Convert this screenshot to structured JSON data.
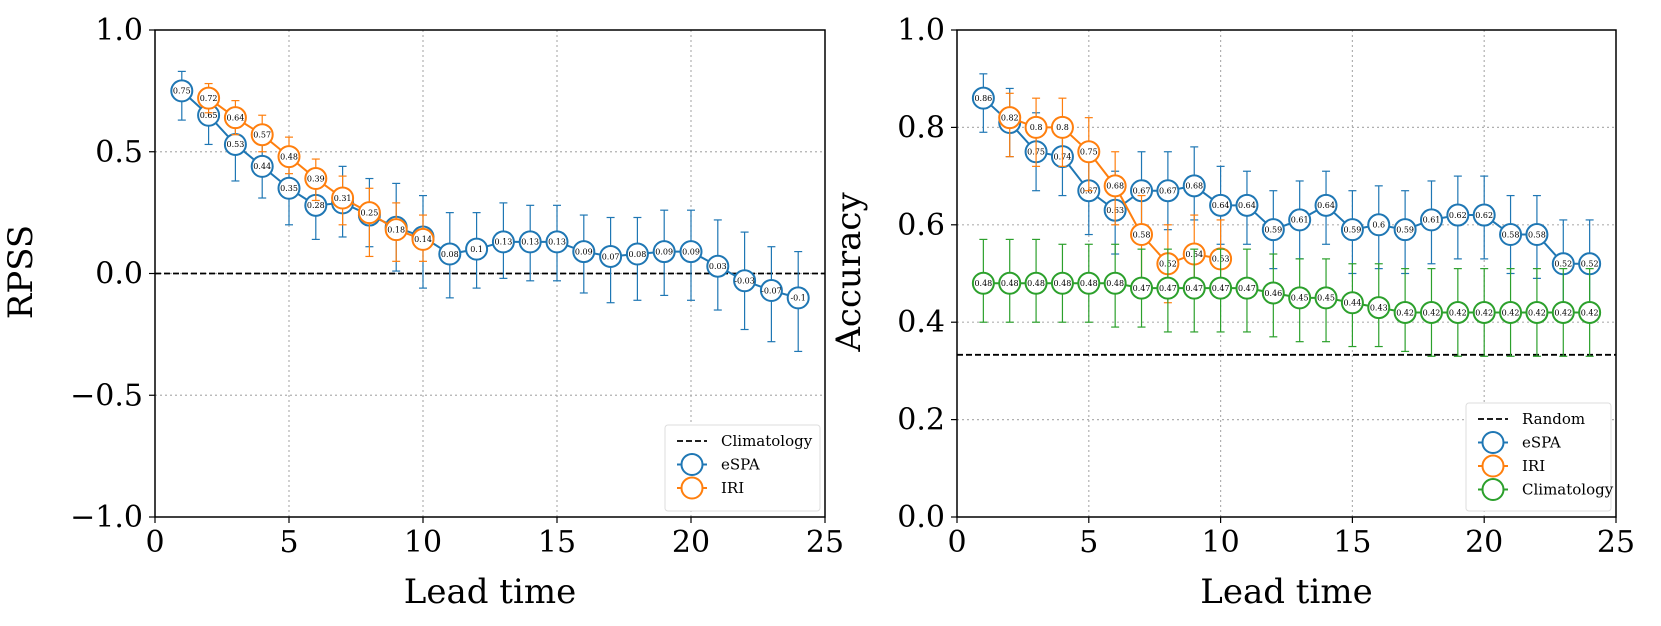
{
  "chart_data": [
    {
      "type": "line",
      "title": "",
      "xlabel": "Lead time",
      "ylabel": "RPSS",
      "xlim": [
        0,
        25
      ],
      "ylim": [
        -1.0,
        1.0
      ],
      "xticks": [
        0,
        5,
        10,
        15,
        20,
        25
      ],
      "xtick_labels": [
        "0",
        "5",
        "10",
        "15",
        "20",
        "25"
      ],
      "yticks": [
        -1.0,
        -0.5,
        0.0,
        0.5,
        1.0
      ],
      "ytick_labels": [
        "−1.0",
        "−0.5",
        "0.0",
        "0.5",
        "1.0"
      ],
      "grid": true,
      "legend_position": "bottom-right",
      "reference_line": {
        "name": "Climatology",
        "y": 0.0,
        "color": "#000000"
      },
      "series": [
        {
          "name": "eSPA",
          "color": "#1f77b4",
          "x": [
            1,
            2,
            3,
            4,
            5,
            6,
            7,
            8,
            9,
            10,
            11,
            12,
            13,
            14,
            15,
            16,
            17,
            18,
            19,
            20,
            21,
            22,
            23,
            24
          ],
          "values": [
            0.75,
            0.65,
            0.53,
            0.44,
            0.35,
            0.28,
            0.29,
            0.24,
            0.19,
            0.15,
            0.08,
            0.1,
            0.13,
            0.13,
            0.13,
            0.09,
            0.07,
            0.08,
            0.09,
            0.09,
            0.03,
            -0.03,
            -0.07,
            -0.1
          ],
          "labels": [
            "0.75",
            "0.65",
            "0.53",
            "0.44",
            "0.35",
            "0.28",
            "0.29",
            "0.24",
            "0.19",
            "0.15",
            "0.08",
            "0.1",
            "0.13",
            "0.13",
            "0.13",
            "0.09",
            "0.07",
            "0.08",
            "0.09",
            "0.09",
            "0.03",
            "-0.03",
            "-0.07",
            "-0.1"
          ],
          "err_low": [
            0.63,
            0.53,
            0.38,
            0.31,
            0.2,
            0.14,
            0.15,
            0.11,
            0.01,
            -0.06,
            -0.1,
            -0.06,
            -0.02,
            -0.03,
            -0.03,
            -0.08,
            -0.12,
            -0.11,
            -0.09,
            -0.11,
            -0.15,
            -0.23,
            -0.28,
            -0.32
          ],
          "err_high": [
            0.83,
            0.76,
            0.67,
            0.56,
            0.5,
            0.42,
            0.44,
            0.39,
            0.37,
            0.32,
            0.25,
            0.25,
            0.29,
            0.28,
            0.28,
            0.24,
            0.23,
            0.23,
            0.26,
            0.26,
            0.22,
            0.17,
            0.11,
            0.09
          ]
        },
        {
          "name": "IRI",
          "color": "#ff7f0e",
          "x": [
            2,
            3,
            4,
            5,
            6,
            7,
            8,
            9,
            10
          ],
          "values": [
            0.72,
            0.64,
            0.57,
            0.48,
            0.39,
            0.31,
            0.25,
            0.18,
            0.14
          ],
          "labels": [
            "0.72",
            "0.64",
            "0.57",
            "0.48",
            "0.39",
            "0.31",
            "0.25",
            "0.18",
            "0.14"
          ],
          "err_low": [
            0.66,
            0.57,
            0.5,
            0.41,
            0.3,
            0.2,
            0.07,
            0.05,
            0.05
          ],
          "err_high": [
            0.78,
            0.71,
            0.65,
            0.56,
            0.47,
            0.4,
            0.35,
            0.29,
            0.24
          ]
        }
      ]
    },
    {
      "type": "line",
      "title": "",
      "xlabel": "Lead time",
      "ylabel": "Accuracy",
      "xlim": [
        0,
        25
      ],
      "ylim": [
        0.0,
        1.0
      ],
      "xticks": [
        0,
        5,
        10,
        15,
        20,
        25
      ],
      "xtick_labels": [
        "0",
        "5",
        "10",
        "15",
        "20",
        "25"
      ],
      "yticks": [
        0.0,
        0.2,
        0.4,
        0.6,
        0.8,
        1.0
      ],
      "ytick_labels": [
        "0.0",
        "0.2",
        "0.4",
        "0.6",
        "0.8",
        "1.0"
      ],
      "grid": true,
      "legend_position": "bottom-right",
      "reference_line": {
        "name": "Random",
        "y": 0.333,
        "color": "#000000"
      },
      "series": [
        {
          "name": "eSPA",
          "color": "#1f77b4",
          "x": [
            1,
            2,
            3,
            4,
            5,
            6,
            7,
            8,
            9,
            10,
            11,
            12,
            13,
            14,
            15,
            16,
            17,
            18,
            19,
            20,
            21,
            22,
            23,
            24
          ],
          "values": [
            0.86,
            0.81,
            0.75,
            0.74,
            0.67,
            0.63,
            0.67,
            0.67,
            0.68,
            0.64,
            0.64,
            0.59,
            0.61,
            0.64,
            0.59,
            0.6,
            0.59,
            0.61,
            0.62,
            0.62,
            0.58,
            0.58,
            0.52,
            0.52
          ],
          "labels": [
            "0.86",
            "0.81",
            "0.75",
            "0.74",
            "0.67",
            "0.63",
            "0.67",
            "0.67",
            "0.68",
            "0.64",
            "0.64",
            "0.59",
            "0.61",
            "0.64",
            "0.59",
            "0.6",
            "0.59",
            "0.61",
            "0.62",
            "0.62",
            "0.58",
            "0.58",
            "0.52",
            "0.52"
          ],
          "err_low": [
            0.79,
            0.74,
            0.67,
            0.66,
            0.58,
            0.54,
            0.59,
            0.59,
            0.61,
            0.56,
            0.56,
            0.51,
            0.53,
            0.56,
            0.5,
            0.51,
            0.5,
            0.52,
            0.53,
            0.53,
            0.5,
            0.49,
            0.44,
            0.44
          ],
          "err_high": [
            0.91,
            0.88,
            0.83,
            0.81,
            0.75,
            0.71,
            0.75,
            0.75,
            0.76,
            0.72,
            0.71,
            0.67,
            0.69,
            0.71,
            0.67,
            0.68,
            0.67,
            0.69,
            0.7,
            0.7,
            0.66,
            0.66,
            0.61,
            0.61
          ]
        },
        {
          "name": "IRI",
          "color": "#ff7f0e",
          "x": [
            2,
            3,
            4,
            5,
            6,
            7,
            8,
            9,
            10
          ],
          "values": [
            0.82,
            0.8,
            0.8,
            0.75,
            0.68,
            0.58,
            0.52,
            0.54,
            0.53
          ],
          "labels": [
            "0.82",
            "0.8",
            "0.8",
            "0.75",
            "0.68",
            "0.58",
            "0.52",
            "0.54",
            "0.53"
          ],
          "err_low": [
            0.74,
            0.72,
            0.72,
            0.67,
            0.6,
            0.49,
            0.44,
            0.46,
            0.45
          ],
          "err_high": [
            0.87,
            0.86,
            0.86,
            0.82,
            0.75,
            0.66,
            0.6,
            0.62,
            0.61
          ]
        },
        {
          "name": "Climatology",
          "color": "#2ca02c",
          "x": [
            1,
            2,
            3,
            4,
            5,
            6,
            7,
            8,
            9,
            10,
            11,
            12,
            13,
            14,
            15,
            16,
            17,
            18,
            19,
            20,
            21,
            22,
            23,
            24
          ],
          "values": [
            0.48,
            0.48,
            0.48,
            0.48,
            0.48,
            0.48,
            0.47,
            0.47,
            0.47,
            0.47,
            0.47,
            0.46,
            0.45,
            0.45,
            0.44,
            0.43,
            0.42,
            0.42,
            0.42,
            0.42,
            0.42,
            0.42,
            0.42,
            0.42
          ],
          "labels": [
            "0.48",
            "0.48",
            "0.48",
            "0.48",
            "0.48",
            "0.48",
            "0.47",
            "0.47",
            "0.47",
            "0.47",
            "0.47",
            "0.46",
            "0.45",
            "0.45",
            "0.44",
            "0.43",
            "0.42",
            "0.42",
            "0.42",
            "0.42",
            "0.42",
            "0.42",
            "0.42",
            "0.42"
          ],
          "err_low": [
            0.4,
            0.4,
            0.4,
            0.4,
            0.4,
            0.39,
            0.39,
            0.38,
            0.38,
            0.38,
            0.38,
            0.37,
            0.36,
            0.36,
            0.35,
            0.35,
            0.34,
            0.33,
            0.33,
            0.33,
            0.33,
            0.33,
            0.33,
            0.33
          ],
          "err_high": [
            0.57,
            0.57,
            0.57,
            0.56,
            0.56,
            0.56,
            0.55,
            0.55,
            0.55,
            0.55,
            0.55,
            0.54,
            0.53,
            0.53,
            0.52,
            0.52,
            0.51,
            0.51,
            0.51,
            0.51,
            0.51,
            0.51,
            0.51,
            0.51
          ]
        }
      ]
    }
  ]
}
